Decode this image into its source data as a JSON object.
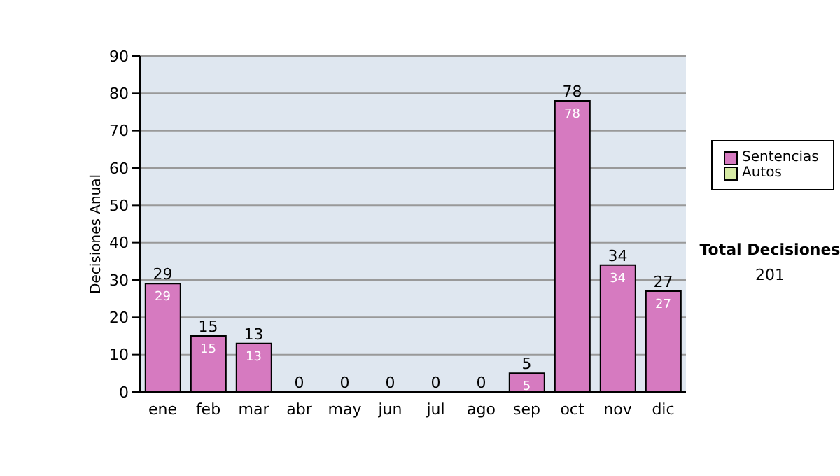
{
  "chart_data": {
    "type": "bar",
    "ylabel": "Decisiones Anual",
    "categories": [
      "ene",
      "feb",
      "mar",
      "abr",
      "may",
      "jun",
      "jul",
      "ago",
      "sep",
      "oct",
      "nov",
      "dic"
    ],
    "series": [
      {
        "name": "Sentencias",
        "color": "#d67ac0",
        "values": [
          29,
          15,
          13,
          0,
          0,
          0,
          0,
          0,
          5,
          78,
          34,
          27
        ],
        "value_labels": [
          "29",
          "15",
          "13",
          null,
          null,
          null,
          null,
          null,
          "5",
          "78",
          "34",
          "27"
        ]
      },
      {
        "name": "Autos",
        "color": "#d6eaa4",
        "values": [
          0,
          0,
          0,
          0,
          0,
          0,
          0,
          0,
          0,
          0,
          0,
          0
        ]
      }
    ],
    "stacked": true,
    "totals": [
      "29",
      "15",
      "13",
      "0",
      "0",
      "0",
      "0",
      "0",
      "5",
      "78",
      "34",
      "27"
    ],
    "ylim": [
      0,
      90
    ],
    "yticks": [
      0,
      10,
      20,
      30,
      40,
      50,
      60,
      70,
      80,
      90
    ],
    "grid": "y",
    "legend": "right",
    "annotations": [
      "Total Decisiones",
      "201"
    ]
  }
}
